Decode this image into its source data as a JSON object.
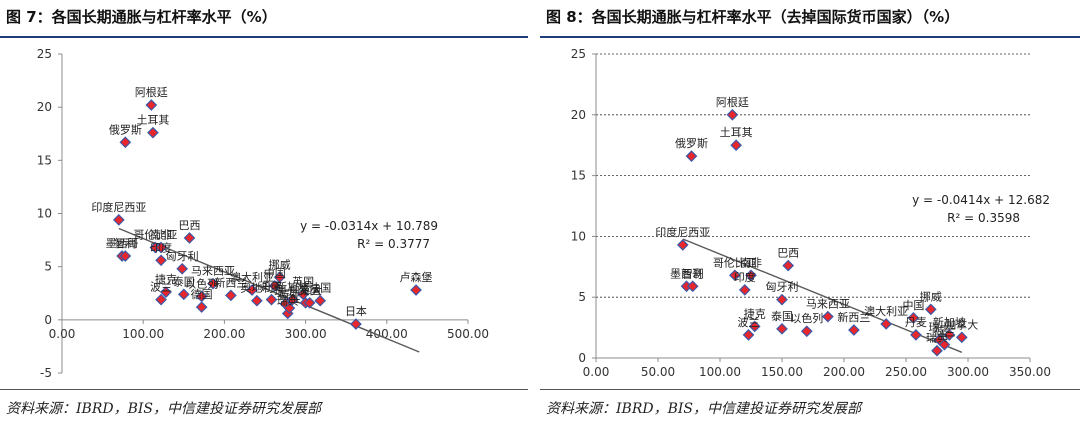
{
  "figures": [
    {
      "fig_title": "图 7：各国长期通胀与杠杆率水平（%）",
      "source": "资料来源：IBRD，BIS，中信建投证券研究发展部",
      "chart_data": {
        "type": "scatter",
        "title": "",
        "xlabel": "",
        "ylabel": "",
        "xlim": [
          0,
          500
        ],
        "ylim": [
          -5,
          25
        ],
        "x_ticks": [
          0,
          100,
          200,
          300,
          400,
          500
        ],
        "x_tick_labels": [
          "0.00",
          "100.00",
          "200.00",
          "300.00",
          "400.00",
          "500.00"
        ],
        "y_ticks": [
          -5,
          0,
          5,
          10,
          15,
          20,
          25
        ],
        "y_tick_labels": [
          "-5",
          "0",
          "5",
          "10",
          "15",
          "20",
          "25"
        ],
        "grid": "none",
        "marker_color": "#e8262b",
        "trendline": {
          "slope": -0.0314,
          "intercept": 10.789,
          "x_range": [
            70,
            440
          ]
        },
        "equation_text": "y = -0.0314x + 10.789",
        "r2_text": "R² = 0.3777",
        "points": [
          {
            "x": 110,
            "y": 20.2,
            "label": "阿根廷"
          },
          {
            "x": 112,
            "y": 17.6,
            "label": "土耳其"
          },
          {
            "x": 78,
            "y": 16.7,
            "label": "俄罗斯"
          },
          {
            "x": 70,
            "y": 9.4,
            "label": "印度尼西亚"
          },
          {
            "x": 115,
            "y": 6.8,
            "label": "哥伦比亚"
          },
          {
            "x": 122,
            "y": 6.8,
            "label": "南非"
          },
          {
            "x": 157,
            "y": 7.7,
            "label": "巴西"
          },
          {
            "x": 74,
            "y": 6.0,
            "label": "墨西哥"
          },
          {
            "x": 78,
            "y": 6.0,
            "label": "智利"
          },
          {
            "x": 122,
            "y": 5.6,
            "label": "印度"
          },
          {
            "x": 148,
            "y": 4.8,
            "label": "匈牙利"
          },
          {
            "x": 128,
            "y": 2.6,
            "label": "捷克"
          },
          {
            "x": 122,
            "y": 1.9,
            "label": "波兰"
          },
          {
            "x": 150,
            "y": 2.4,
            "label": "泰国"
          },
          {
            "x": 172,
            "y": 2.2,
            "label": "以色列"
          },
          {
            "x": 172,
            "y": 1.2,
            "label": "德国"
          },
          {
            "x": 208,
            "y": 2.3,
            "label": "新西兰"
          },
          {
            "x": 186,
            "y": 3.4,
            "label": "马来西亚"
          },
          {
            "x": 234,
            "y": 2.8,
            "label": "澳大利亚"
          },
          {
            "x": 240,
            "y": 1.8,
            "label": "奥地利"
          },
          {
            "x": 262,
            "y": 3.2,
            "label": "中国"
          },
          {
            "x": 268,
            "y": 4.0,
            "label": "挪威"
          },
          {
            "x": 258,
            "y": 1.9,
            "label": "丹麦"
          },
          {
            "x": 275,
            "y": 1.5,
            "label": "瑞士"
          },
          {
            "x": 278,
            "y": 0.6,
            "label": "瑞典"
          },
          {
            "x": 280,
            "y": 1.1,
            "label": "荷兰"
          },
          {
            "x": 284,
            "y": 1.9,
            "label": "新加坡"
          },
          {
            "x": 297,
            "y": 2.4,
            "label": "英国"
          },
          {
            "x": 300,
            "y": 1.6,
            "label": "加拿大"
          },
          {
            "x": 305,
            "y": 1.6,
            "label": "美国"
          },
          {
            "x": 318,
            "y": 1.8,
            "label": "法国"
          },
          {
            "x": 362,
            "y": -0.4,
            "label": "日本"
          },
          {
            "x": 436,
            "y": 2.8,
            "label": "卢森堡"
          }
        ]
      }
    },
    {
      "fig_title": "图 8：各国长期通胀与杠杆率水平（去掉国际货币国家）（%）",
      "source": "资料来源：IBRD，BIS，中信建投证券研究发展部",
      "chart_data": {
        "type": "scatter",
        "title": "",
        "xlabel": "",
        "ylabel": "",
        "xlim": [
          0,
          350
        ],
        "ylim": [
          0,
          25
        ],
        "x_ticks": [
          0,
          50,
          100,
          150,
          200,
          250,
          300,
          350
        ],
        "x_tick_labels": [
          "0.00",
          "50.00",
          "100.00",
          "150.00",
          "200.00",
          "250.00",
          "300.00",
          "350.00"
        ],
        "y_ticks": [
          0,
          5,
          10,
          15,
          20,
          25
        ],
        "y_tick_labels": [
          "0",
          "5",
          "10",
          "15",
          "20",
          "25"
        ],
        "grid": "horizontal dashed",
        "marker_color": "#e8262b",
        "trendline": {
          "slope": -0.0414,
          "intercept": 12.682,
          "x_range": [
            70,
            295
          ]
        },
        "equation_text": "y = -0.0414x + 12.682",
        "r2_text": "R² = 0.3598",
        "points": [
          {
            "x": 110,
            "y": 20.0,
            "label": "阿根廷"
          },
          {
            "x": 113,
            "y": 17.5,
            "label": "土耳其"
          },
          {
            "x": 77,
            "y": 16.6,
            "label": "俄罗斯"
          },
          {
            "x": 70,
            "y": 9.3,
            "label": "印度尼西亚"
          },
          {
            "x": 112,
            "y": 6.8,
            "label": "哥伦比亚"
          },
          {
            "x": 125,
            "y": 6.8,
            "label": "南非"
          },
          {
            "x": 155,
            "y": 7.6,
            "label": "巴西"
          },
          {
            "x": 73,
            "y": 5.9,
            "label": "墨西哥"
          },
          {
            "x": 78,
            "y": 5.9,
            "label": "智利"
          },
          {
            "x": 120,
            "y": 5.6,
            "label": "印度"
          },
          {
            "x": 150,
            "y": 4.8,
            "label": "匈牙利"
          },
          {
            "x": 128,
            "y": 2.6,
            "label": "捷克"
          },
          {
            "x": 123,
            "y": 1.9,
            "label": "波兰"
          },
          {
            "x": 150,
            "y": 2.4,
            "label": "泰国"
          },
          {
            "x": 170,
            "y": 2.2,
            "label": "以色列"
          },
          {
            "x": 208,
            "y": 2.3,
            "label": "新西兰"
          },
          {
            "x": 187,
            "y": 3.4,
            "label": "马来西亚"
          },
          {
            "x": 234,
            "y": 2.8,
            "label": "澳大利亚"
          },
          {
            "x": 256,
            "y": 3.3,
            "label": "中国"
          },
          {
            "x": 270,
            "y": 4.0,
            "label": "挪威"
          },
          {
            "x": 258,
            "y": 1.9,
            "label": "丹麦"
          },
          {
            "x": 277,
            "y": 1.5,
            "label": "瑞士"
          },
          {
            "x": 275,
            "y": 0.6,
            "label": "瑞典"
          },
          {
            "x": 281,
            "y": 1.1,
            "label": "荷兰"
          },
          {
            "x": 285,
            "y": 1.9,
            "label": "新加坡"
          },
          {
            "x": 295,
            "y": 1.7,
            "label": "加拿大"
          }
        ]
      }
    }
  ]
}
